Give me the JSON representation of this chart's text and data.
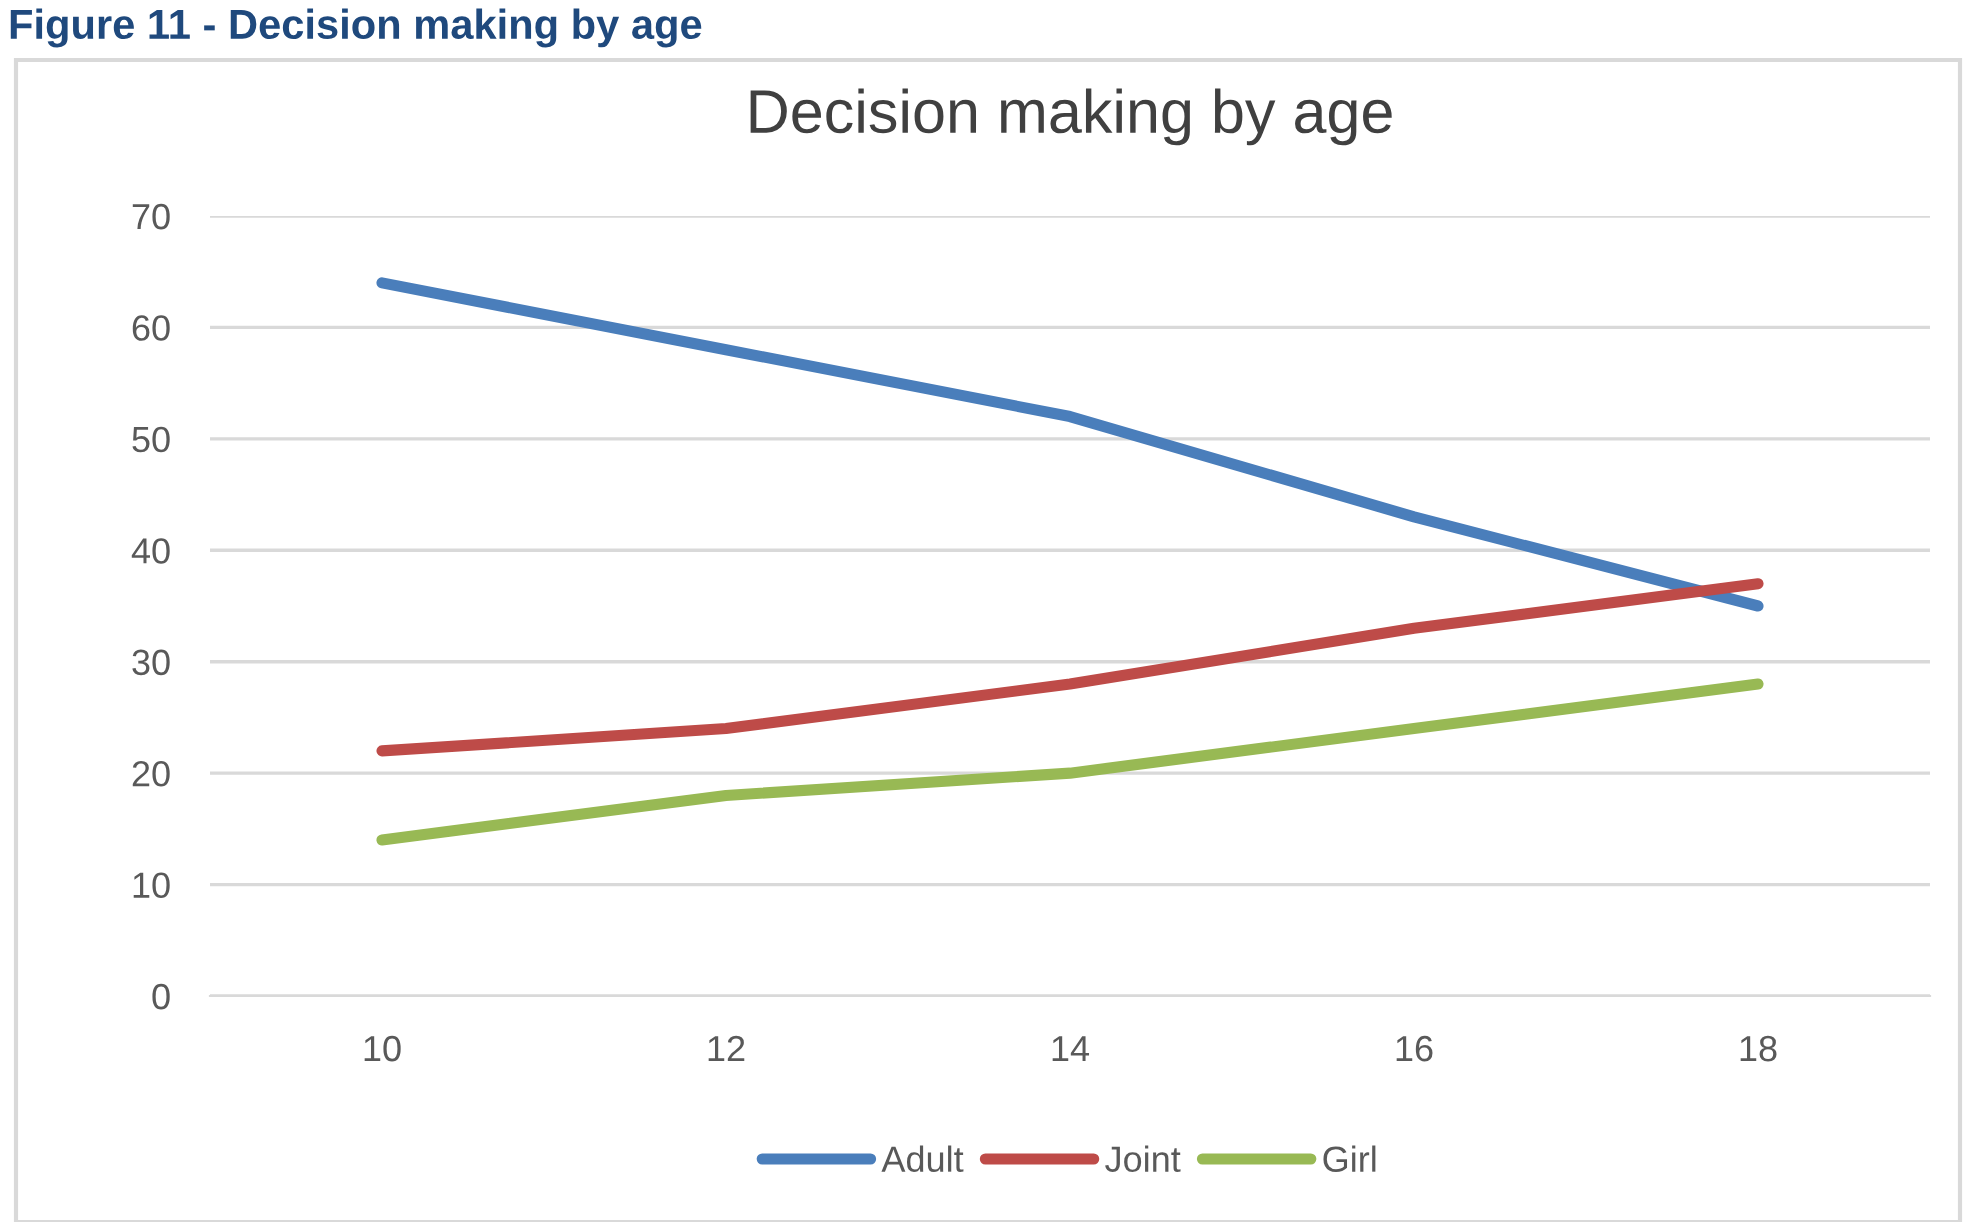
{
  "chart_data": {
    "type": "line",
    "title": "Decision making by age",
    "annotations": [
      "Figure 11 - Decision making by age"
    ],
    "categories": [
      "10",
      "12",
      "14",
      "16",
      "18"
    ],
    "series": [
      {
        "name": "Adult",
        "color": "#4a7ebb",
        "values": [
          64,
          58,
          52,
          43,
          35
        ]
      },
      {
        "name": "Joint",
        "color": "#be4b48",
        "values": [
          22,
          24,
          28,
          33,
          37
        ]
      },
      {
        "name": "Girl",
        "color": "#98b954",
        "values": [
          14,
          18,
          20,
          24,
          28
        ]
      }
    ],
    "ylim": [
      0,
      70
    ],
    "yticks": [
      0,
      10,
      20,
      30,
      40,
      50,
      60,
      70
    ],
    "grid": "y",
    "legend": "bottom",
    "marker": "none",
    "line_style": "solid"
  }
}
